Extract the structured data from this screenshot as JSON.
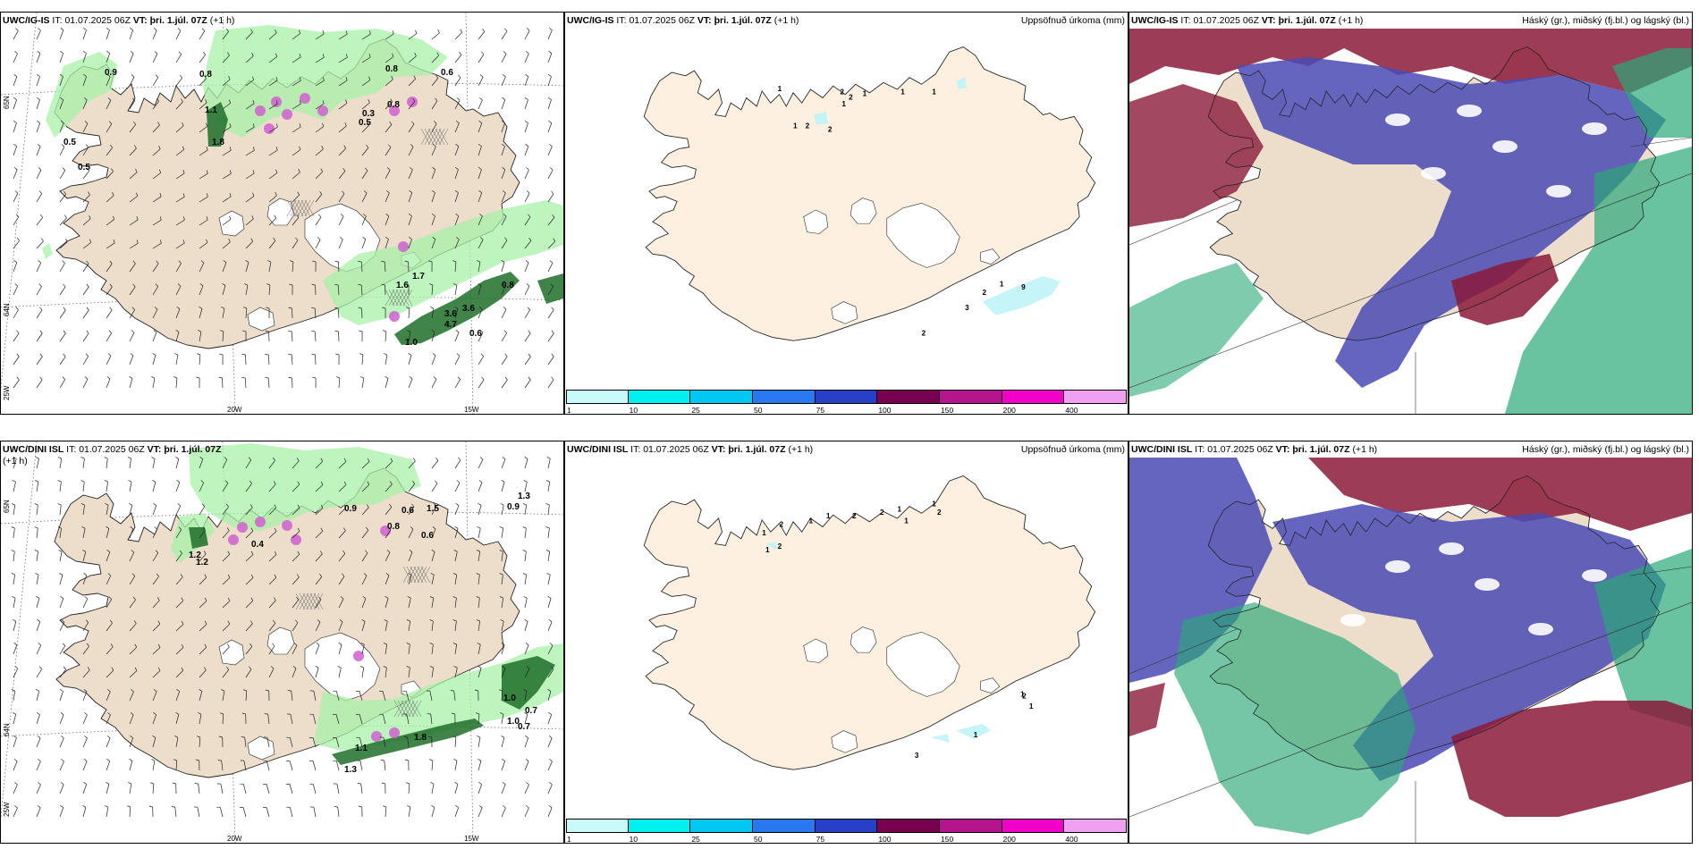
{
  "rows": [
    {
      "wind": {
        "model": "UWC/IG-IS",
        "it_label": "IT:",
        "it": "01.07.2025 06Z",
        "vt_label": "VT:",
        "vt": "þri. 1.júl. 07Z",
        "lead": "(+1 h)",
        "lat_labels": [
          "65N",
          "64N",
          "25W"
        ],
        "lon_labels": [
          "20W",
          "15W"
        ],
        "values": [
          "0.9",
          "0.8",
          "1.1",
          "0.5",
          "0.5",
          "0.8",
          "0.8",
          "0.6",
          "0.5",
          "0.3",
          "3.6",
          "4.7",
          "3.6",
          "0.6",
          "1.0",
          "0.8",
          "1.6",
          "1.7",
          "1.8"
        ]
      },
      "precip": {
        "model": "UWC/IG-IS",
        "it_label": "IT:",
        "it": "01.07.2025 06Z",
        "vt_label": "VT:",
        "vt": "þri. 1.júl. 07Z",
        "lead": "(+1 h)",
        "right_title": "Uppsöfnuð úrkoma (mm)",
        "values": [
          "1",
          "2",
          "2",
          "1",
          "1",
          "1",
          "1",
          "2",
          "2",
          "1",
          "2",
          "1",
          "9",
          "3",
          "2"
        ]
      },
      "cloud": {
        "model": "UWC/IG-IS",
        "it_label": "IT:",
        "it": "01.07.2025 06Z",
        "vt_label": "VT:",
        "vt": "þri. 1.júl. 07Z",
        "lead": "(+1 h)",
        "right_title": "Háský (gr.), miðský (fj.bl.) og lágský (bl.)"
      }
    },
    {
      "wind": {
        "model": "UWC/DINI ISL",
        "it_label": "IT:",
        "it": "01.07.2025 06Z",
        "vt_label": "VT:",
        "vt": "þri. 1.júl. 07Z",
        "lead": "(+1 h)",
        "lat_labels": [
          "65N",
          "64N",
          "25W"
        ],
        "lon_labels": [
          "20W",
          "15W"
        ],
        "values": [
          "0.6",
          "1.2",
          "1.2",
          "0.4",
          "0.9",
          "0.8",
          "1.5",
          "0.6",
          "1.3",
          "0.9",
          "1.0",
          "0.7",
          "1.0",
          "0.7",
          "1.3",
          "1.8",
          "1.1"
        ]
      },
      "precip": {
        "model": "UWC/DINI ISL",
        "it_label": "IT:",
        "it": "01.07.2025 06Z",
        "vt_label": "VT:",
        "vt": "þri. 1.júl. 07Z",
        "lead": "(+1 h)",
        "right_title": "Uppsöfnuð úrkoma (mm)",
        "values": [
          "1",
          "2",
          "1",
          "2",
          "1",
          "1",
          "2",
          "2",
          "1",
          "1",
          "1",
          "2",
          "2",
          "3",
          "1",
          "1",
          "1"
        ]
      },
      "cloud": {
        "model": "UWC/DINI ISL",
        "it_label": "IT:",
        "it": "01.07.2025 06Z",
        "vt_label": "VT:",
        "vt": "þri. 1.júl. 07Z",
        "lead": "(+1 h)",
        "right_title": "Háský (gr.), miðský (fj.bl.) og lágský (bl.)"
      }
    }
  ],
  "precip_scale": {
    "ticks": [
      "1",
      "10",
      "25",
      "50",
      "75",
      "100",
      "150",
      "200",
      "400"
    ],
    "colors": [
      "#c8fafa",
      "#00f0f0",
      "#00c8f0",
      "#2878f0",
      "#2840c8",
      "#780050",
      "#b4148c",
      "#f000c8",
      "#f0a0f0"
    ]
  },
  "colors": {
    "land_wind": "#ecdecb",
    "land_precip": "#fdf0e1",
    "light_precip": "#a8f0a8",
    "heavy_precip": "#1e6e2a",
    "convective": "#d060d0",
    "high_cloud": "#8b1a3a",
    "mid_cloud": "#4a4ab4",
    "low_cloud": "#2aa878"
  }
}
